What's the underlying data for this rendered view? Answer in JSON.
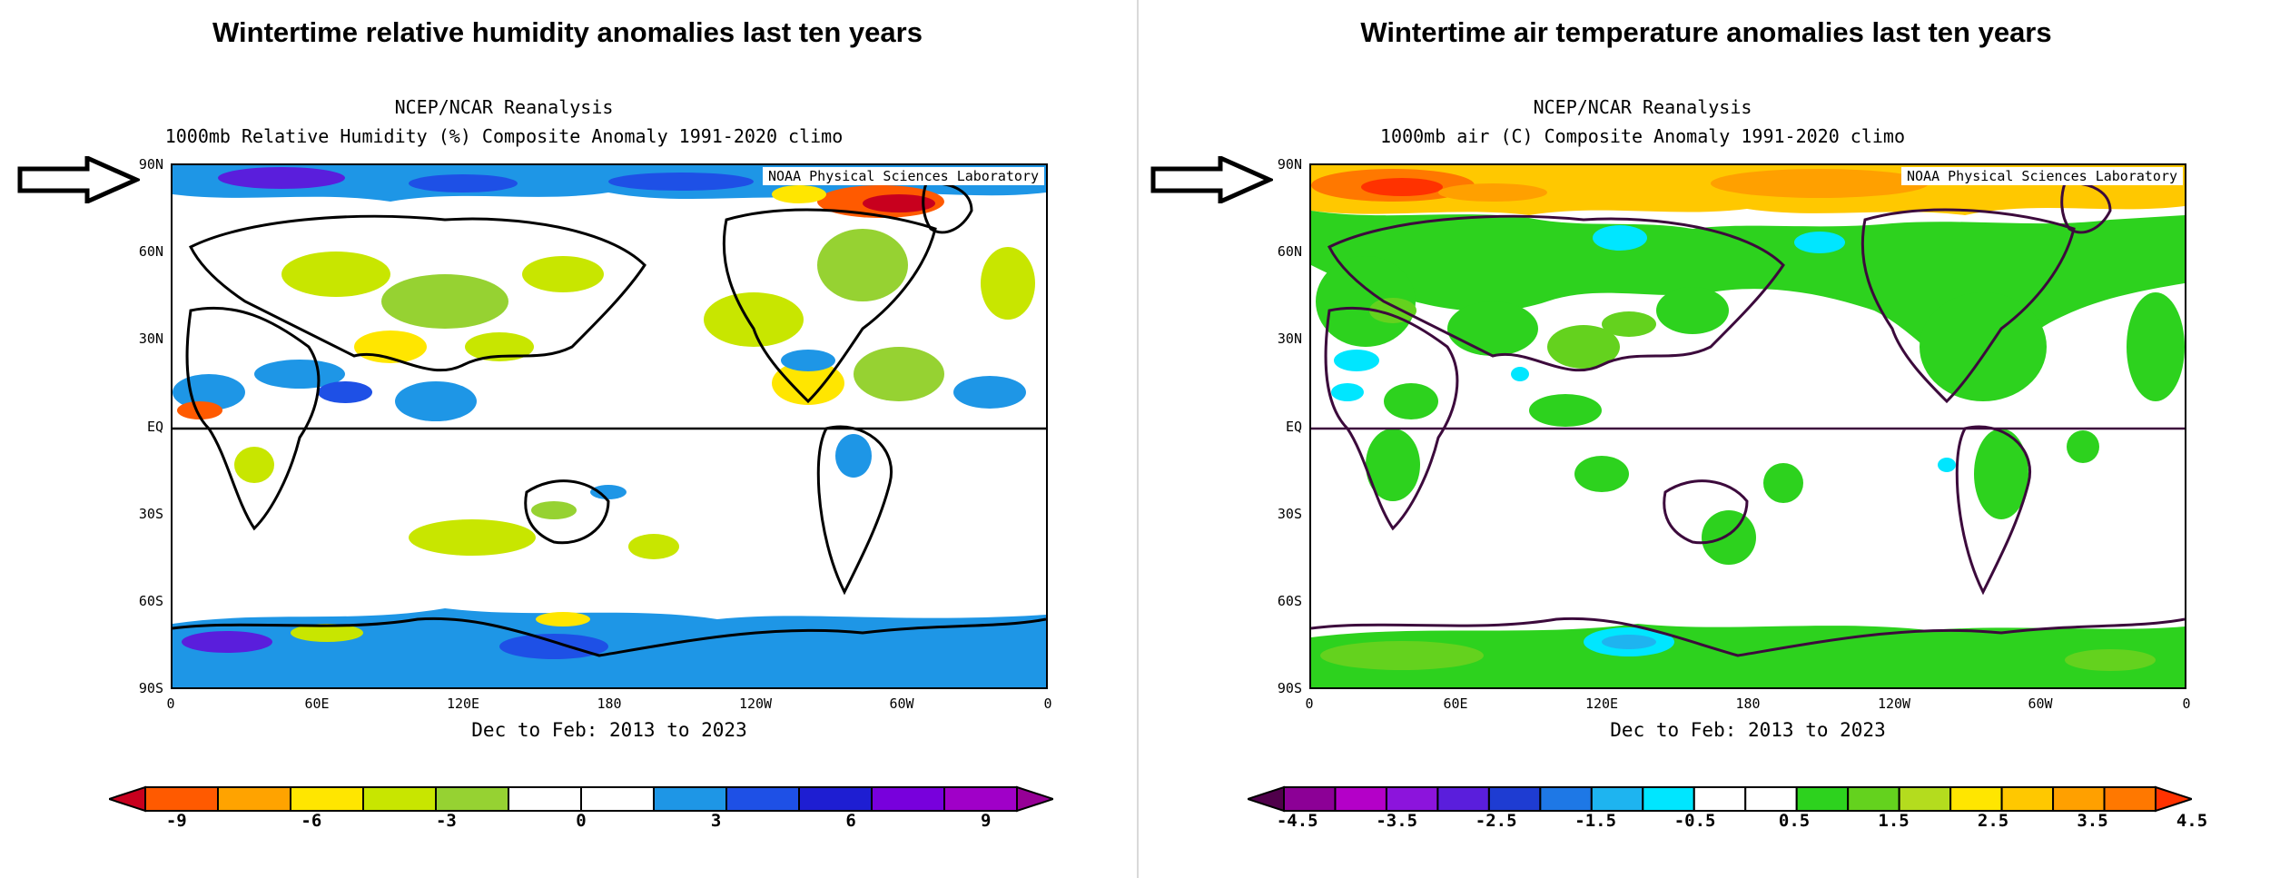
{
  "panels": [
    {
      "title": "Wintertime relative humidity anomalies last ten years",
      "source": "NCEP/NCAR Reanalysis",
      "subtitle": "1000mb Relative Humidity (%) Composite Anomaly 1991-2020 climo",
      "lab": "NOAA Physical Sciences Laboratory",
      "period": "Dec to Feb: 2013 to 2023",
      "colorbar_colors": [
        "#c8001e",
        "#ff5a00",
        "#ffa300",
        "#ffe600",
        "#c8e600",
        "#96d232",
        "#ffffff",
        "#ffffff",
        "#1e96e6",
        "#1e50e6",
        "#1e1ed2",
        "#7800dc",
        "#a000c8",
        "#960096"
      ],
      "colorbar_ticks": [
        "-9",
        "-6",
        "-3",
        "0",
        "3",
        "6",
        "9"
      ],
      "colorbar_tick_positions": [
        0.5,
        2.5,
        4.5,
        6.5,
        8.5,
        10.5,
        12.5
      ]
    },
    {
      "title": "Wintertime air temperature anomalies last ten years",
      "source": "NCEP/NCAR Reanalysis",
      "subtitle": "1000mb air (C) Composite Anomaly 1991-2020 climo",
      "lab": "NOAA Physical Sciences Laboratory",
      "period": "Dec to Feb: 2013 to 2023",
      "colorbar_colors": [
        "#50004b",
        "#8c0096",
        "#b400c8",
        "#8c14dc",
        "#5a1edc",
        "#1e3cd2",
        "#1e78e6",
        "#1eb4f0",
        "#00e6ff",
        "#ffffff",
        "#ffffff",
        "#2dd21e",
        "#64d21e",
        "#b4dc1e",
        "#ffe600",
        "#ffc800",
        "#ffa000",
        "#ff7800",
        "#ff3200"
      ],
      "colorbar_ticks": [
        "-4.5",
        "-3.5",
        "-2.5",
        "-1.5",
        "-0.5",
        "0.5",
        "1.5",
        "2.5",
        "3.5",
        "4.5"
      ],
      "colorbar_tick_positions": [
        0.5,
        2.5,
        4.5,
        6.5,
        8.5,
        10.5,
        12.5,
        14.5,
        16.5,
        18.5
      ]
    }
  ],
  "lat_labels": [
    "90N",
    "60N",
    "30N",
    "EQ",
    "30S",
    "60S",
    "90S"
  ],
  "lon_labels": [
    "0",
    "60E",
    "120E",
    "180",
    "120W",
    "60W",
    "0"
  ]
}
